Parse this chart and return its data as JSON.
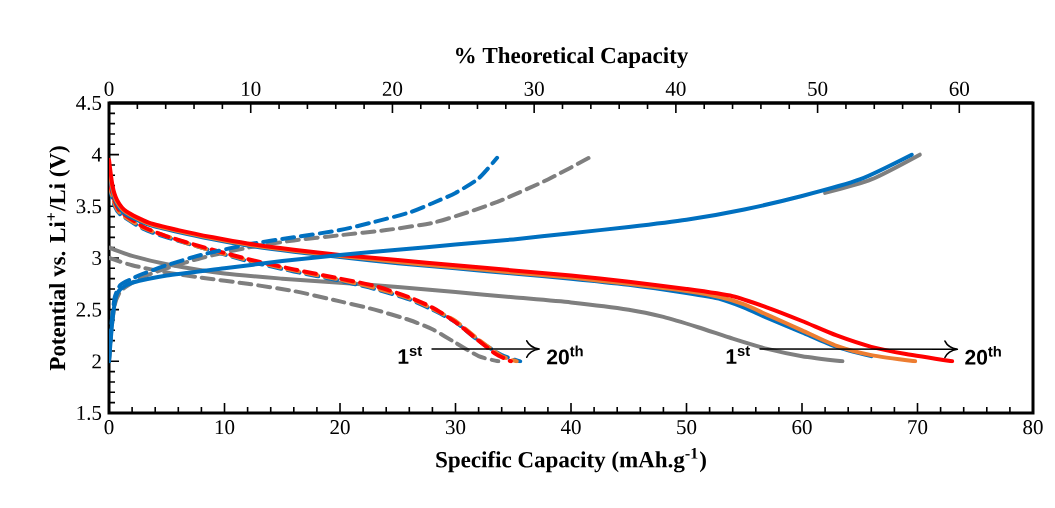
{
  "chart_data": {
    "type": "line",
    "xlabel": "Specific Capacity (mAh.g$^{-1}$)",
    "ylabel": "Potential vs. Li$^{+}$/Li (V)",
    "x2label": "% Theoretical Capacity",
    "xlim": [
      0,
      80
    ],
    "xticks": [
      0,
      10,
      20,
      30,
      40,
      50,
      60,
      70,
      80
    ],
    "ylim": [
      1.5,
      4.5
    ],
    "yticks": [
      1.5,
      2,
      2.5,
      3,
      3.5,
      4,
      4.5
    ],
    "x2lim": [
      0,
      65.2
    ],
    "x2ticks": [
      0,
      10,
      20,
      30,
      40,
      50,
      60
    ],
    "series": [
      {
        "color": "#7f7f7f",
        "line_style": "dashed",
        "x": [
          0,
          2,
          5,
          8,
          12,
          16,
          20,
          23,
          26,
          28,
          30,
          32,
          33.7
        ],
        "values": [
          3.0,
          2.93,
          2.86,
          2.81,
          2.75,
          2.68,
          2.58,
          2.5,
          2.4,
          2.31,
          2.18,
          2.05,
          2.0
        ]
      },
      {
        "color": "#7f7f7f",
        "line_style": "dashed",
        "x": [
          0,
          0.2,
          0.5,
          1,
          2,
          3,
          5,
          8,
          12,
          16,
          20,
          24,
          28,
          31,
          34,
          38,
          41.9
        ],
        "values": [
          2.0,
          2.3,
          2.55,
          2.68,
          2.76,
          2.82,
          2.9,
          3.0,
          3.1,
          3.17,
          3.22,
          3.27,
          3.34,
          3.44,
          3.56,
          3.76,
          3.99
        ]
      },
      {
        "color": "#7f7f7f",
        "line_style": "solid",
        "x": [
          0,
          2,
          5,
          10,
          15,
          20,
          25,
          30,
          35,
          40,
          45,
          48,
          51,
          54,
          57,
          60,
          63.5
        ],
        "values": [
          3.1,
          3.02,
          2.94,
          2.85,
          2.8,
          2.76,
          2.72,
          2.67,
          2.62,
          2.57,
          2.5,
          2.43,
          2.33,
          2.22,
          2.12,
          2.05,
          2.0
        ]
      },
      {
        "color": "#7f7f7f",
        "line_style": "solid",
        "x": [
          62,
          66,
          70.2
        ],
        "values": [
          3.63,
          3.76,
          4.0
        ]
      },
      {
        "color": "#0070c0",
        "line_style": "dashed",
        "x": [
          0,
          0.5,
          1,
          3,
          5,
          8,
          12,
          16,
          20,
          23,
          26,
          28,
          30,
          32,
          34,
          35.6
        ],
        "values": [
          3.7,
          3.5,
          3.42,
          3.28,
          3.2,
          3.1,
          2.97,
          2.87,
          2.78,
          2.7,
          2.6,
          2.5,
          2.38,
          2.2,
          2.06,
          2.0
        ]
      },
      {
        "color": "#ed7d31",
        "line_style": "dashed",
        "x": [
          0,
          0.5,
          1,
          3,
          5,
          8,
          12,
          16,
          20,
          23,
          26,
          28,
          30,
          32,
          34,
          35.3
        ],
        "values": [
          3.72,
          3.52,
          3.43,
          3.29,
          3.21,
          3.1,
          2.98,
          2.88,
          2.79,
          2.71,
          2.61,
          2.51,
          2.39,
          2.21,
          2.05,
          2.0
        ]
      },
      {
        "color": "#ff0000",
        "line_style": "dashed",
        "x": [
          0,
          0.5,
          1,
          3,
          5,
          8,
          12,
          16,
          20,
          23,
          26,
          28,
          30,
          32,
          33.5,
          34.8
        ],
        "values": [
          3.75,
          3.55,
          3.45,
          3.3,
          3.21,
          3.11,
          2.99,
          2.89,
          2.8,
          2.73,
          2.62,
          2.52,
          2.38,
          2.2,
          2.07,
          2.0
        ]
      },
      {
        "color": "#0070c0",
        "line_style": "dashed",
        "x": [
          0,
          0.2,
          0.5,
          1,
          2,
          3,
          5,
          8,
          12,
          16,
          20,
          23,
          26,
          28,
          30,
          32,
          33.6
        ],
        "values": [
          2.0,
          2.35,
          2.62,
          2.74,
          2.8,
          2.85,
          2.93,
          3.03,
          3.13,
          3.2,
          3.27,
          3.35,
          3.44,
          3.53,
          3.63,
          3.77,
          3.97
        ]
      },
      {
        "color": "#0070c0",
        "line_style": "solid",
        "x": [
          0,
          0.3,
          0.7,
          1.5,
          3.5,
          6,
          9,
          12,
          16,
          20,
          25,
          30,
          35,
          40,
          45,
          50,
          53,
          55,
          57,
          60,
          63,
          66
        ],
        "values": [
          3.85,
          3.65,
          3.52,
          3.42,
          3.32,
          3.25,
          3.18,
          3.12,
          3.06,
          3.01,
          2.95,
          2.9,
          2.85,
          2.8,
          2.74,
          2.66,
          2.6,
          2.52,
          2.42,
          2.28,
          2.14,
          2.05
        ]
      },
      {
        "color": "#ed7d31",
        "line_style": "solid",
        "x": [
          0,
          0.3,
          0.7,
          1.5,
          3.5,
          6,
          9,
          12,
          16,
          20,
          25,
          30,
          35,
          40,
          45,
          50,
          53,
          55,
          57,
          60,
          63,
          66,
          69.8
        ],
        "values": [
          3.88,
          3.67,
          3.54,
          3.44,
          3.33,
          3.26,
          3.19,
          3.13,
          3.07,
          3.02,
          2.96,
          2.91,
          2.86,
          2.81,
          2.75,
          2.68,
          2.62,
          2.55,
          2.45,
          2.3,
          2.15,
          2.06,
          2.0
        ]
      },
      {
        "color": "#ff0000",
        "line_style": "solid",
        "x": [
          0,
          0.3,
          0.7,
          1.5,
          3.5,
          6,
          9,
          12,
          16,
          20,
          25,
          30,
          35,
          40,
          45,
          50,
          54,
          57,
          60,
          63,
          66,
          69,
          73
        ],
        "values": [
          3.95,
          3.7,
          3.56,
          3.45,
          3.34,
          3.27,
          3.2,
          3.14,
          3.08,
          3.03,
          2.98,
          2.93,
          2.88,
          2.83,
          2.77,
          2.7,
          2.63,
          2.52,
          2.39,
          2.25,
          2.14,
          2.07,
          2.0
        ]
      },
      {
        "color": "#0070c0",
        "line_style": "solid",
        "x": [
          0,
          0.3,
          0.6,
          1,
          2,
          5,
          10,
          15,
          20,
          25,
          30,
          35,
          40,
          45,
          50,
          55,
          60,
          65,
          69.5
        ],
        "values": [
          2.0,
          2.4,
          2.62,
          2.7,
          2.76,
          2.83,
          2.9,
          2.97,
          3.03,
          3.08,
          3.13,
          3.18,
          3.24,
          3.3,
          3.37,
          3.47,
          3.6,
          3.76,
          4.0
        ]
      }
    ],
    "annotations": [
      "1$^{st}$",
      "20$^{th}$",
      "1$^{st}$",
      {
        "text": "20$^{th}$",
        "x": 73,
        "y": 2.0
      }
    ]
  }
}
